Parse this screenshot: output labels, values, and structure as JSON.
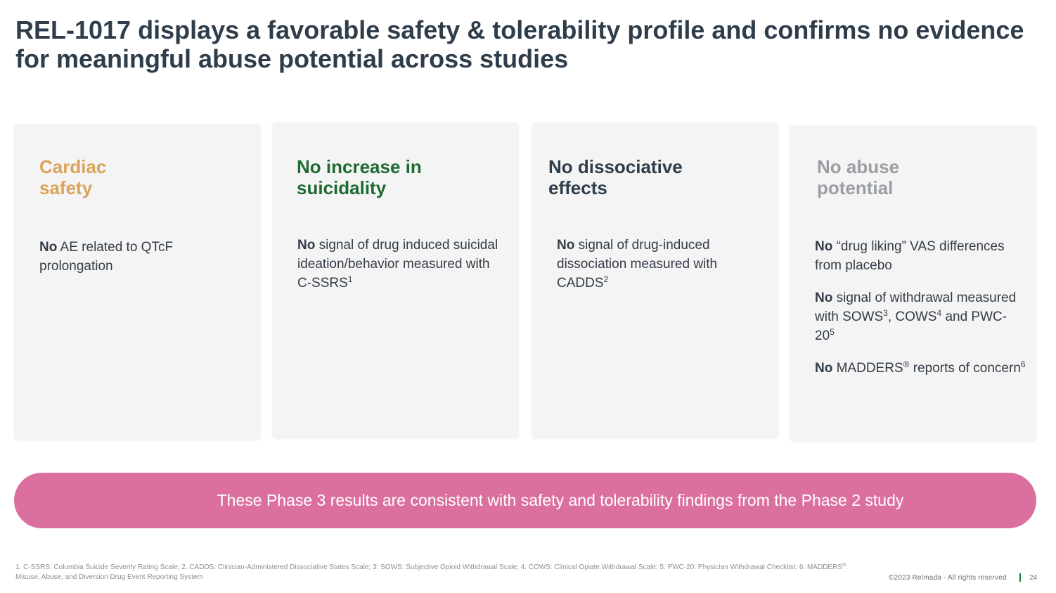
{
  "title": "REL-1017 displays a favorable safety & tolerability profile and confirms no evidence for meaningful abuse potential across studies",
  "cards": [
    {
      "heading_line1": "Cardiac",
      "heading_line2": "safety",
      "color": "#dba35a",
      "items": [
        {
          "bold": "No",
          "text": " AE related to QTcF prolongation"
        }
      ]
    },
    {
      "heading_line1": "No increase in",
      "heading_line2": "suicidality",
      "color": "#1e6b32",
      "items": [
        {
          "bold": "No",
          "text": " signal of drug induced suicidal ideation/behavior measured with C-SSRS",
          "sup": "1"
        }
      ]
    },
    {
      "heading_line1": "No dissociative",
      "heading_line2": "effects",
      "color": "#2f3d4b",
      "items": [
        {
          "bold": "No",
          "text": " signal of drug-induced dissociation measured with CADDS",
          "sup": "2"
        }
      ]
    },
    {
      "heading_line1": "No abuse",
      "heading_line2": "potential",
      "color": "#9a9ea3",
      "items": [
        {
          "bold": "No",
          "text": " “drug liking” VAS differences from placebo"
        },
        {
          "bold": "No",
          "text": " signal of withdrawal measured with SOWS",
          "sup": "3",
          "text2": ", COWS",
          "sup2": "4",
          "text3": " and PWC-20",
          "sup3": "5"
        },
        {
          "bold": "No",
          "text": " MADDERS",
          "sup": "®",
          "text2": " reports of concern",
          "sup2": "6"
        }
      ]
    }
  ],
  "banner": "These Phase 3 results are consistent with safety and tolerability findings from the Phase 2 study",
  "footnotes": {
    "part1": "1. C-SSRS: Columbia Suicide Severity Rating Scale; 2. CADDS: Clinician-Administered Dissociative States Scale; 3. SOWS: Subjective Opioid Withdrawal Scale; 4. COWS: Clinical Opiate Withdrawal Scale; 5. PWC-20: Physician Withdrawal Checklist; 6. MADDERS",
    "sup": "®",
    "part2": ": Misuse, Abuse, and Diversion Drug Event Reporting System"
  },
  "copyright": "©2023 Relmada - All rights reserved",
  "page_number": "24"
}
